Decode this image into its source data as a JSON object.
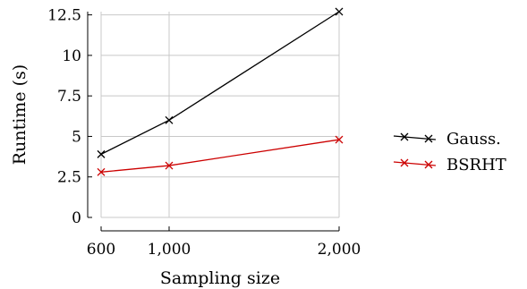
{
  "chart_data": {
    "type": "line",
    "xlabel": "Sampling size",
    "ylabel": "Runtime (s)",
    "x": [
      600,
      1000,
      2000
    ],
    "x_tick_values": [
      600,
      1000,
      2000
    ],
    "x_tick_labels": [
      "600",
      "1,000",
      "2,000"
    ],
    "xlim": [
      600,
      2000
    ],
    "ylim": [
      0,
      12.7
    ],
    "y_tick_values": [
      0,
      2.5,
      5,
      7.5,
      10,
      12.5
    ],
    "y_tick_labels": [
      "0",
      "2.5",
      "5",
      "7.5",
      "10",
      "12.5"
    ],
    "grid": true,
    "legend_position": "right",
    "series": [
      {
        "name": "Gauss.",
        "values": [
          3.9,
          6.0,
          12.7
        ],
        "color": "#000000",
        "marker": "x"
      },
      {
        "name": "BSRHT",
        "values": [
          2.8,
          3.2,
          4.8
        ],
        "color": "#cc0000",
        "marker": "x"
      }
    ]
  }
}
